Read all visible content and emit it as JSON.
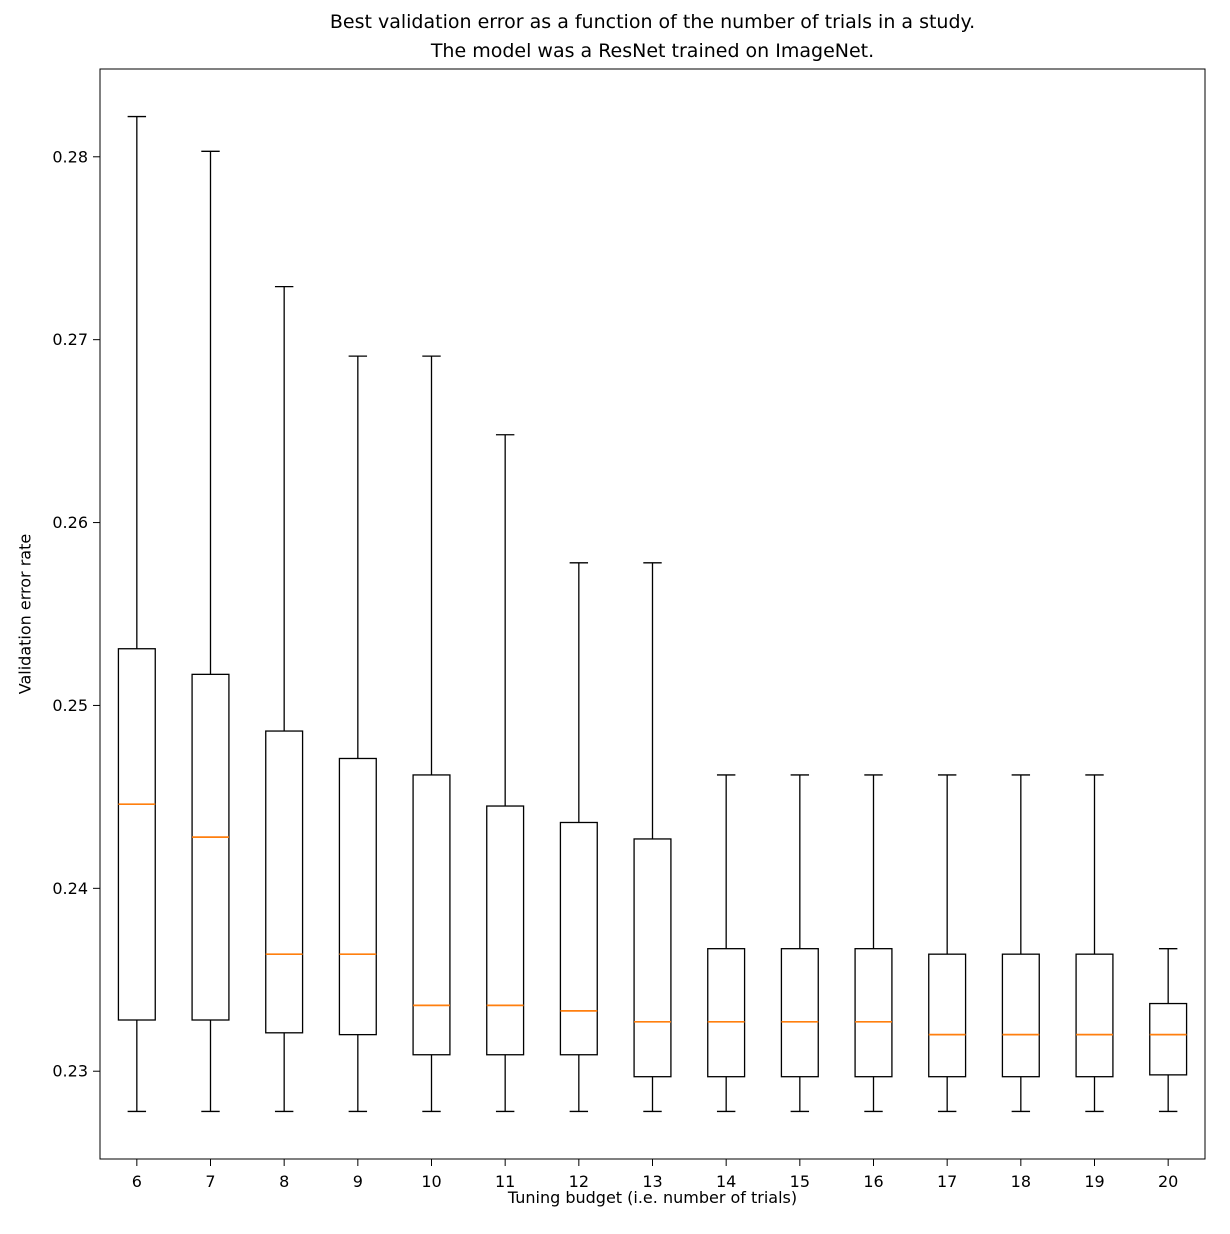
{
  "header": {
    "title_line1": "Best validation error as a function of the number of trials in a study.",
    "title_line2": "The model was a ResNet trained on ImageNet."
  },
  "chart_data": {
    "type": "boxplot",
    "title": "Best validation error as a function of the number of trials in a study.\nThe model was a ResNet trained on ImageNet.",
    "xlabel": "Tuning budget (i.e. number of trials)",
    "ylabel": "Validation error rate",
    "categories": [
      6,
      7,
      8,
      9,
      10,
      11,
      12,
      13,
      14,
      15,
      16,
      17,
      18,
      19,
      20
    ],
    "yticks": [
      0.23,
      0.24,
      0.25,
      0.26,
      0.27,
      0.28
    ],
    "ylim": [
      0.2252,
      0.2848
    ],
    "grid": false,
    "legend": "none",
    "box_color": "#000000",
    "median_color": "#ff7f0e",
    "boxes": [
      {
        "category": 6,
        "whislo": 0.2278,
        "q1": 0.2328,
        "med": 0.2446,
        "q3": 0.2531,
        "whishi": 0.2822
      },
      {
        "category": 7,
        "whislo": 0.2278,
        "q1": 0.2328,
        "med": 0.2428,
        "q3": 0.2517,
        "whishi": 0.2803
      },
      {
        "category": 8,
        "whislo": 0.2278,
        "q1": 0.2321,
        "med": 0.2364,
        "q3": 0.2486,
        "whishi": 0.2729
      },
      {
        "category": 9,
        "whislo": 0.2278,
        "q1": 0.232,
        "med": 0.2364,
        "q3": 0.2471,
        "whishi": 0.2691
      },
      {
        "category": 10,
        "whislo": 0.2278,
        "q1": 0.2309,
        "med": 0.2336,
        "q3": 0.2462,
        "whishi": 0.2691
      },
      {
        "category": 11,
        "whislo": 0.2278,
        "q1": 0.2309,
        "med": 0.2336,
        "q3": 0.2445,
        "whishi": 0.2648
      },
      {
        "category": 12,
        "whislo": 0.2278,
        "q1": 0.2309,
        "med": 0.2333,
        "q3": 0.2436,
        "whishi": 0.2578
      },
      {
        "category": 13,
        "whislo": 0.2278,
        "q1": 0.2297,
        "med": 0.2327,
        "q3": 0.2427,
        "whishi": 0.2578
      },
      {
        "category": 14,
        "whislo": 0.2278,
        "q1": 0.2297,
        "med": 0.2327,
        "q3": 0.2367,
        "whishi": 0.2462
      },
      {
        "category": 15,
        "whislo": 0.2278,
        "q1": 0.2297,
        "med": 0.2327,
        "q3": 0.2367,
        "whishi": 0.2462
      },
      {
        "category": 16,
        "whislo": 0.2278,
        "q1": 0.2297,
        "med": 0.2327,
        "q3": 0.2367,
        "whishi": 0.2462
      },
      {
        "category": 17,
        "whislo": 0.2278,
        "q1": 0.2297,
        "med": 0.232,
        "q3": 0.2364,
        "whishi": 0.2462
      },
      {
        "category": 18,
        "whislo": 0.2278,
        "q1": 0.2297,
        "med": 0.232,
        "q3": 0.2364,
        "whishi": 0.2462
      },
      {
        "category": 19,
        "whislo": 0.2278,
        "q1": 0.2297,
        "med": 0.232,
        "q3": 0.2364,
        "whishi": 0.2462
      },
      {
        "category": 20,
        "whislo": 0.2278,
        "q1": 0.2298,
        "med": 0.232,
        "q3": 0.2337,
        "whishi": 0.2367
      }
    ]
  }
}
